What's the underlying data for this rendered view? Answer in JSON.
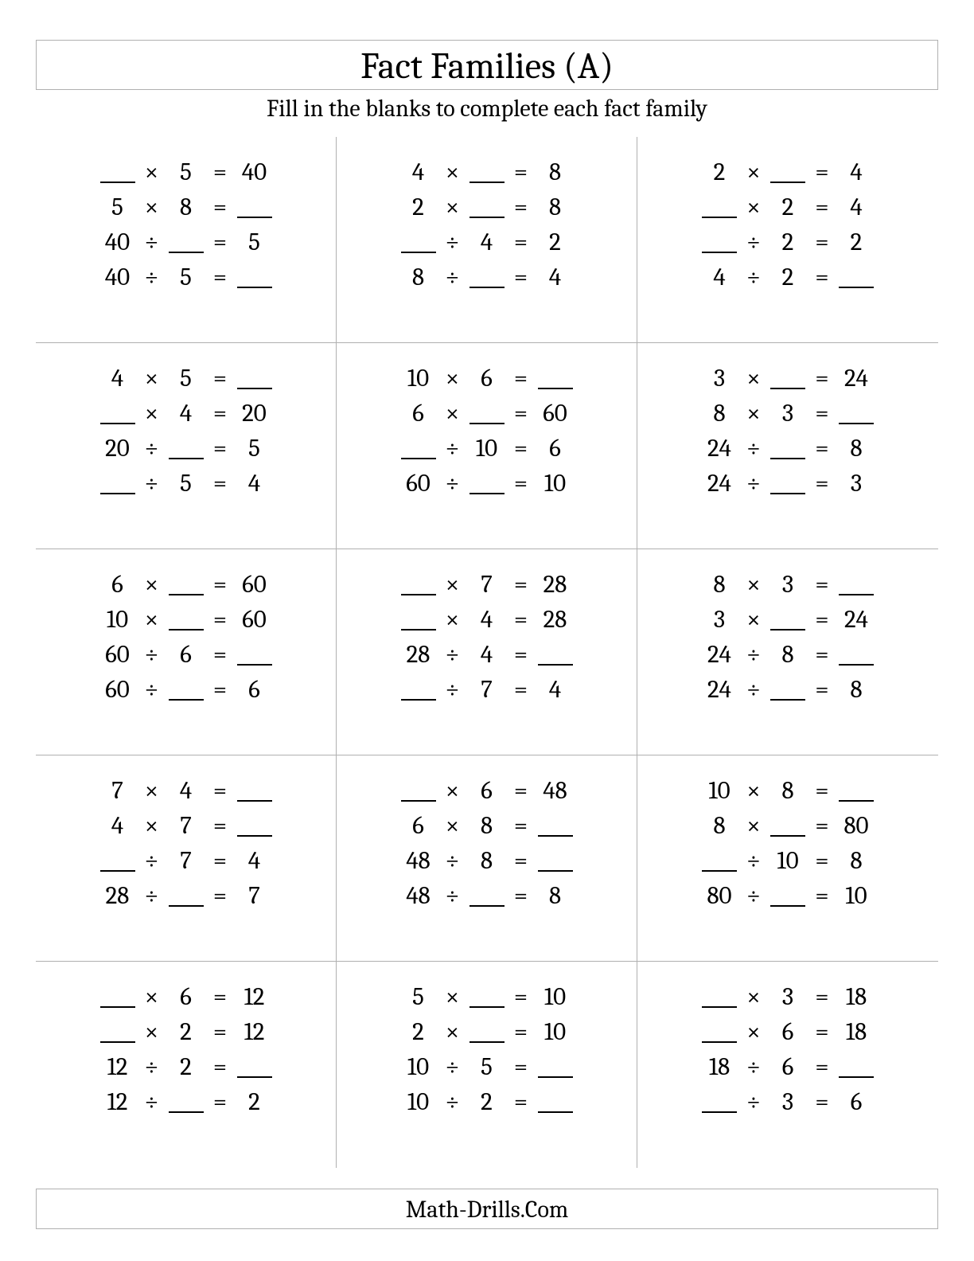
{
  "title": "Fact Families (A)",
  "subtitle": "Fill in the blanks to complete each fact family",
  "footer": "Math-Drills.Com",
  "ops": {
    "mul": "×",
    "div": "÷",
    "eq": "="
  },
  "families": [
    [
      [
        "_",
        "×",
        "5",
        "=",
        "40"
      ],
      [
        "5",
        "×",
        "8",
        "=",
        "_"
      ],
      [
        "40",
        "÷",
        "_",
        "=",
        "5"
      ],
      [
        "40",
        "÷",
        "5",
        "=",
        "_"
      ]
    ],
    [
      [
        "4",
        "×",
        "_",
        "=",
        "8"
      ],
      [
        "2",
        "×",
        "_",
        "=",
        "8"
      ],
      [
        "_",
        "÷",
        "4",
        "=",
        "2"
      ],
      [
        "8",
        "÷",
        "_",
        "=",
        "4"
      ]
    ],
    [
      [
        "2",
        "×",
        "_",
        "=",
        "4"
      ],
      [
        "_",
        "×",
        "2",
        "=",
        "4"
      ],
      [
        "_",
        "÷",
        "2",
        "=",
        "2"
      ],
      [
        "4",
        "÷",
        "2",
        "=",
        "_"
      ]
    ],
    [
      [
        "4",
        "×",
        "5",
        "=",
        "_"
      ],
      [
        "_",
        "×",
        "4",
        "=",
        "20"
      ],
      [
        "20",
        "÷",
        "_",
        "=",
        "5"
      ],
      [
        "_",
        "÷",
        "5",
        "=",
        "4"
      ]
    ],
    [
      [
        "10",
        "×",
        "6",
        "=",
        "_"
      ],
      [
        "6",
        "×",
        "_",
        "=",
        "60"
      ],
      [
        "_",
        "÷",
        "10",
        "=",
        "6"
      ],
      [
        "60",
        "÷",
        "_",
        "=",
        "10"
      ]
    ],
    [
      [
        "3",
        "×",
        "_",
        "=",
        "24"
      ],
      [
        "8",
        "×",
        "3",
        "=",
        "_"
      ],
      [
        "24",
        "÷",
        "_",
        "=",
        "8"
      ],
      [
        "24",
        "÷",
        "_",
        "=",
        "3"
      ]
    ],
    [
      [
        "6",
        "×",
        "_",
        "=",
        "60"
      ],
      [
        "10",
        "×",
        "_",
        "=",
        "60"
      ],
      [
        "60",
        "÷",
        "6",
        "=",
        "_"
      ],
      [
        "60",
        "÷",
        "_",
        "=",
        "6"
      ]
    ],
    [
      [
        "_",
        "×",
        "7",
        "=",
        "28"
      ],
      [
        "_",
        "×",
        "4",
        "=",
        "28"
      ],
      [
        "28",
        "÷",
        "4",
        "=",
        "_"
      ],
      [
        "_",
        "÷",
        "7",
        "=",
        "4"
      ]
    ],
    [
      [
        "8",
        "×",
        "3",
        "=",
        "_"
      ],
      [
        "3",
        "×",
        "_",
        "=",
        "24"
      ],
      [
        "24",
        "÷",
        "8",
        "=",
        "_"
      ],
      [
        "24",
        "÷",
        "_",
        "=",
        "8"
      ]
    ],
    [
      [
        "7",
        "×",
        "4",
        "=",
        "_"
      ],
      [
        "4",
        "×",
        "7",
        "=",
        "_"
      ],
      [
        "_",
        "÷",
        "7",
        "=",
        "4"
      ],
      [
        "28",
        "÷",
        "_",
        "=",
        "7"
      ]
    ],
    [
      [
        "_",
        "×",
        "6",
        "=",
        "48"
      ],
      [
        "6",
        "×",
        "8",
        "=",
        "_"
      ],
      [
        "48",
        "÷",
        "8",
        "=",
        "_"
      ],
      [
        "48",
        "÷",
        "_",
        "=",
        "8"
      ]
    ],
    [
      [
        "10",
        "×",
        "8",
        "=",
        "_"
      ],
      [
        "8",
        "×",
        "_",
        "=",
        "80"
      ],
      [
        "_",
        "÷",
        "10",
        "=",
        "8"
      ],
      [
        "80",
        "÷",
        "_",
        "=",
        "10"
      ]
    ],
    [
      [
        "_",
        "×",
        "6",
        "=",
        "12"
      ],
      [
        "_",
        "×",
        "2",
        "=",
        "12"
      ],
      [
        "12",
        "÷",
        "2",
        "=",
        "_"
      ],
      [
        "12",
        "÷",
        "_",
        "=",
        "2"
      ]
    ],
    [
      [
        "5",
        "×",
        "_",
        "=",
        "10"
      ],
      [
        "2",
        "×",
        "_",
        "=",
        "10"
      ],
      [
        "10",
        "÷",
        "5",
        "=",
        "_"
      ],
      [
        "10",
        "÷",
        "2",
        "=",
        "_"
      ]
    ],
    [
      [
        "_",
        "×",
        "3",
        "=",
        "18"
      ],
      [
        "_",
        "×",
        "6",
        "=",
        "18"
      ],
      [
        "18",
        "÷",
        "6",
        "=",
        "_"
      ],
      [
        "_",
        "÷",
        "3",
        "=",
        "6"
      ]
    ]
  ]
}
